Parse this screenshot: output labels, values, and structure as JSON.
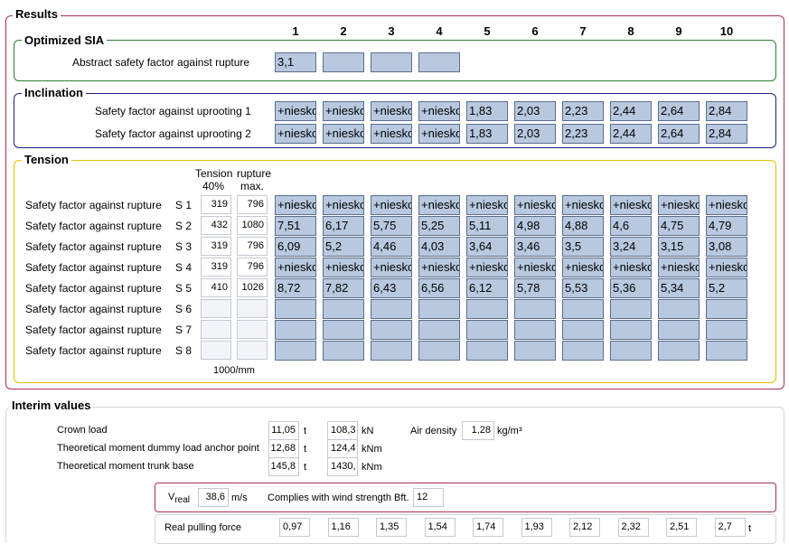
{
  "results": {
    "legend": "Results",
    "columns": [
      "1",
      "2",
      "3",
      "4",
      "5",
      "6",
      "7",
      "8",
      "9",
      "10"
    ],
    "optimized": {
      "legend": "Optimized SIA",
      "label": "Abstract safety factor against rupture",
      "values": [
        "3,1",
        "",
        "",
        ""
      ]
    },
    "inclination": {
      "legend": "Inclination",
      "rows": [
        {
          "label": "Safety factor against uprooting 1",
          "values": [
            "+niesko",
            "+niesko",
            "+niesko",
            "+niesko",
            "1,83",
            "2,03",
            "2,23",
            "2,44",
            "2,64",
            "2,84"
          ]
        },
        {
          "label": "Safety factor against uprooting 2",
          "values": [
            "+niesko",
            "+niesko",
            "+niesko",
            "+niesko",
            "1,83",
            "2,03",
            "2,23",
            "2,44",
            "2,64",
            "2,84"
          ]
        }
      ]
    },
    "tension": {
      "legend": "Tension",
      "header_tension": "Tension",
      "header_rupture": "rupture",
      "header_40": "40%",
      "header_max": "max.",
      "footer_unit": "1000/mm",
      "rows": [
        {
          "label": "Safety factor against rupture",
          "s": "S 1",
          "t40": "319",
          "tmax": "796",
          "values": [
            "+niesko",
            "+niesko",
            "+niesko",
            "+niesko",
            "+niesko",
            "+niesko",
            "+niesko",
            "+niesko",
            "+niesko",
            "+niesko"
          ]
        },
        {
          "label": "Safety factor against rupture",
          "s": "S 2",
          "t40": "432",
          "tmax": "1080",
          "values": [
            "7,51",
            "6,17",
            "5,75",
            "5,25",
            "5,11",
            "4,98",
            "4,88",
            "4,6",
            "4,75",
            "4,79"
          ]
        },
        {
          "label": "Safety factor against rupture",
          "s": "S 3",
          "t40": "319",
          "tmax": "796",
          "values": [
            "6,09",
            "5,2",
            "4,46",
            "4,03",
            "3,64",
            "3,46",
            "3,5",
            "3,24",
            "3,15",
            "3,08"
          ]
        },
        {
          "label": "Safety factor against rupture",
          "s": "S 4",
          "t40": "319",
          "tmax": "796",
          "values": [
            "+niesko",
            "+niesko",
            "+niesko",
            "+niesko",
            "+niesko",
            "+niesko",
            "+niesko",
            "+niesko",
            "+niesko",
            "+niesko"
          ]
        },
        {
          "label": "Safety factor against rupture",
          "s": "S 5",
          "t40": "410",
          "tmax": "1026",
          "values": [
            "8,72",
            "7,82",
            "6,43",
            "6,56",
            "6,12",
            "5,78",
            "5,53",
            "5,36",
            "5,34",
            "5,2"
          ]
        },
        {
          "label": "Safety factor against rupture",
          "s": "S 6",
          "t40": "",
          "tmax": "",
          "values": [
            "",
            "",
            "",
            "",
            "",
            "",
            "",
            "",
            "",
            ""
          ]
        },
        {
          "label": "Safety factor against rupture",
          "s": "S 7",
          "t40": "",
          "tmax": "",
          "values": [
            "",
            "",
            "",
            "",
            "",
            "",
            "",
            "",
            "",
            ""
          ]
        },
        {
          "label": "Safety factor against rupture",
          "s": "S 8",
          "t40": "",
          "tmax": "",
          "values": [
            "",
            "",
            "",
            "",
            "",
            "",
            "",
            "",
            "",
            ""
          ]
        }
      ]
    }
  },
  "interim": {
    "legend": "Interim values",
    "rows": [
      {
        "label": "Crown load",
        "v1": "11,05",
        "u1": "t",
        "v2": "108,3",
        "u2": "kN"
      },
      {
        "label": "Theoretical moment dummy load anchor point",
        "v1": "12,68",
        "u1": "t",
        "v2": "124,4",
        "u2": "kNm"
      },
      {
        "label": "Theoretical moment trunk base",
        "v1": "145,8",
        "u1": "t",
        "v2": "1430,",
        "u2": "kNm"
      }
    ],
    "air_density_label": "Air density",
    "air_density_value": "1,28",
    "air_density_unit": "kg/m³",
    "v_real_label": "V",
    "v_real_sub": "real",
    "v_real_value": "38,6",
    "v_real_unit": "m/s",
    "wind_label": "Complies with wind strength Bft.",
    "wind_value": "12",
    "pulling_label": "Real pulling force",
    "pulling_values": [
      "0,97",
      "1,16",
      "1,35",
      "1,54",
      "1,74",
      "1,93",
      "2,12",
      "2,32",
      "2,51",
      "2,7"
    ],
    "pulling_unit": "t"
  },
  "colors": {
    "results_border": "#a8334e",
    "optimized_border": "#2e7d32",
    "inclination_border": "#1a237e",
    "tension_border": "#e6c200",
    "cell_fill": "#b8c8df"
  }
}
